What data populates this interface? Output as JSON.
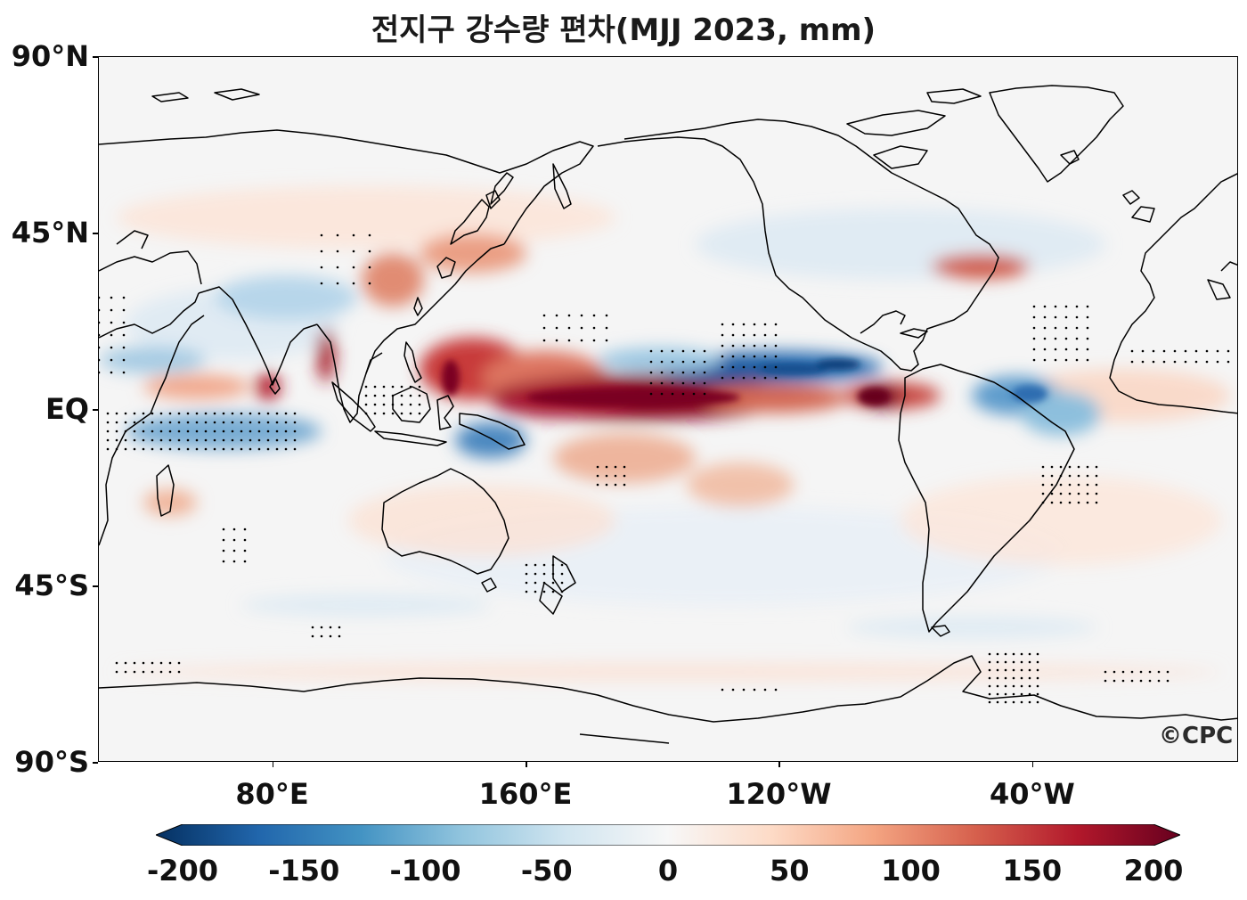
{
  "title": "전지구 강수량 편차(MJJ 2023, mm)",
  "credit": "©CPC",
  "y_axis": {
    "labels": [
      {
        "lat": 90,
        "text": "90°N"
      },
      {
        "lat": 45,
        "text": "45°N"
      },
      {
        "lat": 0,
        "text": "EQ"
      },
      {
        "lat": -45,
        "text": "45°S"
      },
      {
        "lat": -90,
        "text": "90°S"
      }
    ]
  },
  "x_axis": {
    "labels": [
      {
        "lon": 80,
        "text": "80°E"
      },
      {
        "lon": 160,
        "text": "160°E"
      },
      {
        "lon": 240,
        "text": "120°W"
      },
      {
        "lon": 320,
        "text": "40°W"
      }
    ]
  },
  "colorbar": {
    "min": -200,
    "max": 200,
    "ticks": [
      "-200",
      "-150",
      "-100",
      "-50",
      "0",
      "50",
      "100",
      "150",
      "200"
    ],
    "colormap": "RdBu_r",
    "extend": "both",
    "colors": [
      "#053061",
      "#2166ac",
      "#4393c3",
      "#92c5de",
      "#d1e5f0",
      "#f7f7f7",
      "#fddbc7",
      "#f4a582",
      "#d6604d",
      "#b2182b",
      "#67001f"
    ]
  },
  "map": {
    "lon_range_east": [
      25,
      385
    ],
    "lat_range": [
      -90,
      90
    ],
    "projection": "plate carrée, centered 205°E",
    "highlighted_features": [
      {
        "name": "equatorial Pacific positive anomaly",
        "lon": [
          150,
          280
        ],
        "lat": [
          -2,
          8
        ],
        "value": 180
      },
      {
        "name": "western Pacific positive anomaly",
        "lon": [
          125,
          155
        ],
        "lat": [
          5,
          20
        ],
        "value": 140
      },
      {
        "name": "eastern Pacific ITCZ negative anomaly",
        "lon": [
          215,
          270
        ],
        "lat": [
          8,
          14
        ],
        "value": -150
      },
      {
        "name": "equatorial Atlantic/Amazon negative anomaly",
        "lon": [
          305,
          335
        ],
        "lat": [
          -5,
          5
        ],
        "value": -110
      },
      {
        "name": "Indian Ocean negative anomaly",
        "lon": [
          40,
          100
        ],
        "lat": [
          -10,
          -2
        ],
        "value": -90
      },
      {
        "name": "western Indian Ocean positive anomaly",
        "lon": [
          55,
          80
        ],
        "lat": [
          2,
          8
        ],
        "value": 70
      },
      {
        "name": "North Atlantic positive anomaly",
        "lon": [
          300,
          330
        ],
        "lat": [
          35,
          45
        ],
        "value": 90
      }
    ]
  }
}
